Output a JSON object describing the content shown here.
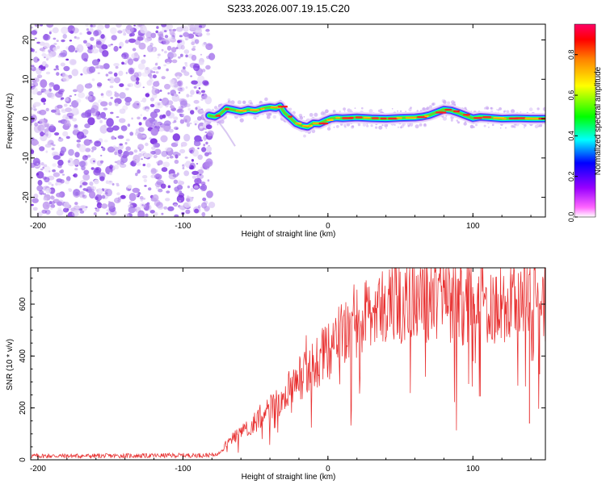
{
  "figure_title": "S233.2026.007.19.15.C20",
  "colors": {
    "snr_line": "#e83030",
    "speckle": "#8a2be2",
    "axis": "#000000"
  },
  "chart_data": [
    {
      "type": "heatmap",
      "name": "spectrogram",
      "xlabel": "Height of straight line (km)",
      "ylabel": "Frequency (Hz)",
      "xlim": [
        -205,
        150
      ],
      "ylim": [
        -25,
        24
      ],
      "xticks": [
        -200,
        -100,
        0,
        100
      ],
      "xtick_labels": [
        "-200",
        "-100",
        "0",
        "100"
      ],
      "yticks": [
        20,
        10,
        0,
        -10,
        -20
      ],
      "ytick_labels": [
        "20",
        "10",
        "0",
        "-10",
        "-20"
      ],
      "noise_region_x": [
        -205,
        -80
      ],
      "signal_track": {
        "x": [
          -82,
          -78,
          -74,
          -70,
          -65,
          -60,
          -55,
          -50,
          -45,
          -40,
          -36,
          -33,
          -30,
          -26,
          -22,
          -18,
          -14,
          -10,
          -6,
          -2,
          2,
          6,
          10,
          20,
          30,
          40,
          50,
          60,
          65,
          70,
          75,
          80,
          85,
          90,
          95,
          100,
          105,
          110,
          120,
          130,
          140,
          150
        ],
        "freq_hz": [
          0.8,
          0.5,
          1.3,
          2.6,
          2.2,
          1.8,
          2.3,
          2.0,
          2.6,
          2.9,
          2.7,
          3.2,
          1.5,
          0.2,
          -1.2,
          -1.8,
          -2.1,
          -1.2,
          -1.3,
          -0.6,
          0.0,
          0.2,
          0.1,
          0.3,
          0.1,
          0.0,
          0.2,
          0.3,
          0.5,
          0.9,
          1.6,
          2.3,
          2.1,
          1.5,
          0.8,
          0.1,
          0.4,
          0.3,
          0.0,
          0.1,
          0.0,
          0.0
        ]
      },
      "faint_tail": {
        "x": [
          -76,
          -70,
          -64
        ],
        "freq_hz": [
          -0.5,
          -3.5,
          -7.0
        ]
      },
      "colorbar": {
        "label": "Normalized spectral amplitude",
        "range": [
          0,
          0.95
        ],
        "ticks": [
          0.0,
          0.2,
          0.4,
          0.6,
          0.8
        ],
        "tick_labels": [
          "0.0",
          "0.2",
          "0.4",
          "0.6",
          "0.8"
        ],
        "colormap": [
          "#ffffff",
          "#ff66ff",
          "#9900ff",
          "#0000ff",
          "#00ffff",
          "#00ff00",
          "#ffff00",
          "#ff8000",
          "#ff0000",
          "#ff0066"
        ]
      }
    },
    {
      "type": "line",
      "name": "snr",
      "xlabel": "Height of straight line (km)",
      "ylabel": "SNR (10 * v/v)",
      "xlim": [
        -205,
        150
      ],
      "ylim": [
        0,
        740
      ],
      "xticks": [
        -200,
        -100,
        0,
        100
      ],
      "xtick_labels": [
        "-200",
        "-100",
        "0",
        "100"
      ],
      "yticks": [
        0,
        200,
        400,
        600
      ],
      "ytick_labels": [
        "0",
        "200",
        "400",
        "600"
      ],
      "trend": {
        "x": [
          -205,
          -160,
          -120,
          -80,
          -75,
          -70,
          -60,
          -50,
          -40,
          -30,
          -20,
          -10,
          0,
          10,
          20,
          30,
          40,
          60,
          80,
          100,
          120,
          150
        ],
        "y": [
          15,
          15,
          16,
          18,
          25,
          65,
          110,
          150,
          200,
          260,
          320,
          380,
          430,
          500,
          560,
          610,
          640,
          650,
          640,
          630,
          620,
          600
        ]
      },
      "notable_points": [
        {
          "x": 139,
          "y": 140
        },
        {
          "x": 146,
          "y": 330
        },
        {
          "x": 100,
          "y": 380
        },
        {
          "x": 92,
          "y": 730
        }
      ]
    }
  ]
}
